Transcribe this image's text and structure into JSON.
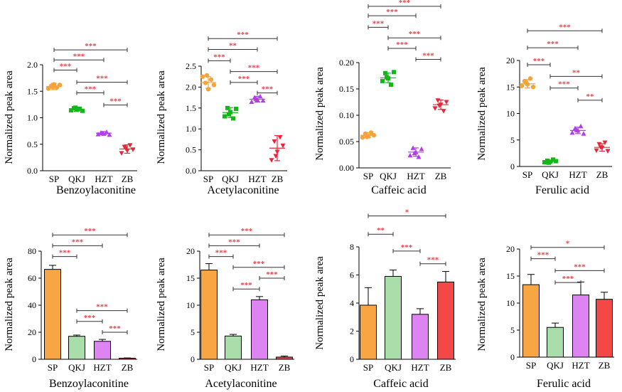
{
  "colors": {
    "SP": "#f5a33a",
    "QKJ": "#12b816",
    "HZT": "#b33dea",
    "ZB": "#e8263a",
    "bar_SP": "#f8a644",
    "bar_QKJ": "#a9ddaa",
    "bar_HZT": "#dd84f2",
    "bar_ZB": "#f24848",
    "sig": "#e8404a",
    "axis": "#000000"
  },
  "chart_data": [
    {
      "type": "scatter",
      "title": "Benzoylaconitine",
      "ylabel": "Normalized peak area",
      "categories": [
        "SP",
        "QKJ",
        "HZT",
        "ZB"
      ],
      "ylim": [
        0,
        2.0
      ],
      "yticks": [
        "0.0",
        "0.5",
        "1.0",
        "1.5",
        "2.0"
      ],
      "tickvals": [
        0,
        0.5,
        1.0,
        1.5,
        2.0
      ],
      "means": [
        1.59,
        1.16,
        0.71,
        0.41
      ],
      "sds": [
        0.06,
        0.04,
        0.03,
        0.08
      ],
      "points": [
        [
          1.55,
          1.6,
          1.63,
          1.57,
          1.62,
          1.58
        ],
        [
          1.14,
          1.18,
          1.15,
          1.17,
          1.13,
          1.19
        ],
        [
          0.69,
          0.72,
          0.7,
          0.73,
          0.68,
          0.71
        ],
        [
          0.33,
          0.45,
          0.38,
          0.48,
          0.4,
          0.42
        ]
      ],
      "sig": [
        {
          "from": 0,
          "to": 3,
          "y": 2.28,
          "label": "***"
        },
        {
          "from": 0,
          "to": 2,
          "y": 2.09,
          "label": "***"
        },
        {
          "from": 0,
          "to": 1,
          "y": 1.9,
          "label": "***"
        },
        {
          "from": 1,
          "to": 3,
          "y": 1.67,
          "label": "***"
        },
        {
          "from": 1,
          "to": 2,
          "y": 1.47,
          "label": "***"
        },
        {
          "from": 2,
          "to": 3,
          "y": 1.24,
          "label": "***"
        }
      ]
    },
    {
      "type": "scatter",
      "title": "Acetylaconitine",
      "ylabel": "Normalized peak area",
      "categories": [
        "SP",
        "QKJ",
        "HZT",
        "ZB"
      ],
      "ylim": [
        0,
        2.5
      ],
      "yticks": [
        "0.0",
        "0.5",
        "1.0",
        "1.5",
        "2.0",
        "2.5"
      ],
      "tickvals": [
        0,
        0.5,
        1.0,
        1.5,
        2.0,
        2.5
      ],
      "means": [
        2.11,
        1.39,
        1.71,
        0.54
      ],
      "sds": [
        0.14,
        0.12,
        0.07,
        0.3
      ],
      "points": [
        [
          2.25,
          2.1,
          1.95,
          2.18,
          2.05,
          2.28
        ],
        [
          1.3,
          1.5,
          1.4,
          1.25,
          1.48,
          1.35
        ],
        [
          1.65,
          1.75,
          1.7,
          1.78,
          1.68,
          1.72
        ],
        [
          0.25,
          0.7,
          0.45,
          0.8,
          0.6,
          0.35
        ]
      ],
      "sig": [
        {
          "from": 0,
          "to": 3,
          "y": 3.16,
          "label": "***"
        },
        {
          "from": 0,
          "to": 2,
          "y": 2.9,
          "label": "**"
        },
        {
          "from": 0,
          "to": 1,
          "y": 2.63,
          "label": "***"
        },
        {
          "from": 1,
          "to": 3,
          "y": 2.37,
          "label": "***"
        },
        {
          "from": 1,
          "to": 2,
          "y": 2.11,
          "label": "***"
        },
        {
          "from": 2,
          "to": 3,
          "y": 1.86,
          "label": "***"
        }
      ]
    },
    {
      "type": "scatter",
      "title": "Caffeic acid",
      "ylabel": "Normalized peak area",
      "categories": [
        "SP",
        "QKJ",
        "HZT",
        "ZB"
      ],
      "ylim": [
        0,
        0.2
      ],
      "yticks": [
        "0.00",
        "0.05",
        "0.10",
        "0.15",
        "0.20"
      ],
      "tickvals": [
        0,
        0.05,
        0.1,
        0.15,
        0.2
      ],
      "means": [
        0.062,
        0.171,
        0.03,
        0.12
      ],
      "sds": [
        0.005,
        0.009,
        0.008,
        0.009
      ],
      "points": [
        [
          0.058,
          0.065,
          0.06,
          0.067,
          0.062,
          0.059
        ],
        [
          0.165,
          0.18,
          0.17,
          0.158,
          0.182,
          0.172
        ],
        [
          0.024,
          0.038,
          0.03,
          0.021,
          0.036,
          0.028
        ],
        [
          0.113,
          0.128,
          0.12,
          0.108,
          0.125,
          0.118
        ]
      ],
      "sig": [
        {
          "from": 0,
          "to": 3,
          "y": 0.307,
          "label": "***"
        },
        {
          "from": 0,
          "to": 2,
          "y": 0.289,
          "label": "***"
        },
        {
          "from": 0,
          "to": 1,
          "y": 0.267,
          "label": "***"
        },
        {
          "from": 1,
          "to": 3,
          "y": 0.247,
          "label": "***"
        },
        {
          "from": 1,
          "to": 2,
          "y": 0.227,
          "label": "***"
        },
        {
          "from": 2,
          "to": 3,
          "y": 0.206,
          "label": "***"
        }
      ]
    },
    {
      "type": "scatter",
      "title": "Ferulic acid",
      "ylabel": "Normalized peak area",
      "categories": [
        "SP",
        "QKJ",
        "HZT",
        "ZB"
      ],
      "ylim": [
        0,
        20
      ],
      "yticks": [
        "0",
        "5",
        "10",
        "15",
        "20"
      ],
      "tickvals": [
        0,
        5,
        10,
        15,
        20
      ],
      "means": [
        15.6,
        1.0,
        6.8,
        3.6
      ],
      "sds": [
        0.8,
        0.2,
        0.6,
        0.7
      ],
      "points": [
        [
          15.2,
          16.1,
          15.5,
          16.6,
          15.0,
          15.8
        ],
        [
          0.8,
          1.1,
          0.9,
          1.3,
          1.0,
          0.7
        ],
        [
          6.4,
          7.2,
          6.8,
          7.6,
          6.2,
          6.9
        ],
        [
          3.0,
          4.2,
          3.5,
          4.5,
          2.9,
          3.6
        ]
      ],
      "sig": [
        {
          "from": 0,
          "to": 3,
          "y": 25.6,
          "label": "***"
        },
        {
          "from": 0,
          "to": 2,
          "y": 22.4,
          "label": "***"
        },
        {
          "from": 0,
          "to": 1,
          "y": 19.2,
          "label": "***"
        },
        {
          "from": 1,
          "to": 3,
          "y": 17.0,
          "label": "**"
        },
        {
          "from": 1,
          "to": 2,
          "y": 14.8,
          "label": "***"
        },
        {
          "from": 2,
          "to": 3,
          "y": 12.5,
          "label": "**"
        }
      ]
    },
    {
      "type": "bar",
      "title": "Benzoylaconitine",
      "ylabel": "Normalized peak area",
      "categories": [
        "SP",
        "QKJ",
        "HZT",
        "ZB"
      ],
      "ylim": [
        0,
        80
      ],
      "yticks": [
        "0",
        "20",
        "40",
        "60",
        "80"
      ],
      "tickvals": [
        0,
        20,
        40,
        60,
        80
      ],
      "values": [
        66.5,
        17.0,
        13.3,
        0.8
      ],
      "errors": [
        3.0,
        0.9,
        1.4,
        0.2
      ],
      "sig": [
        {
          "from": 0,
          "to": 3,
          "y": 92,
          "label": "***"
        },
        {
          "from": 0,
          "to": 2,
          "y": 84,
          "label": "***"
        },
        {
          "from": 0,
          "to": 1,
          "y": 76,
          "label": "***"
        },
        {
          "from": 1,
          "to": 3,
          "y": 36,
          "label": "***"
        },
        {
          "from": 1,
          "to": 2,
          "y": 28,
          "label": "***"
        },
        {
          "from": 2,
          "to": 3,
          "y": 20,
          "label": "***"
        }
      ]
    },
    {
      "type": "bar",
      "title": "Acetylaconitine",
      "ylabel": "Normalized peak area",
      "categories": [
        "SP",
        "QKJ",
        "HZT",
        "ZB"
      ],
      "ylim": [
        0,
        20
      ],
      "yticks": [
        "0",
        "5",
        "10",
        "15",
        "20"
      ],
      "tickvals": [
        0,
        5,
        10,
        15,
        20
      ],
      "values": [
        16.5,
        4.3,
        11.0,
        0.4
      ],
      "errors": [
        1.2,
        0.3,
        0.6,
        0.2
      ],
      "sig": [
        {
          "from": 0,
          "to": 3,
          "y": 23.0,
          "label": "***"
        },
        {
          "from": 0,
          "to": 2,
          "y": 21.0,
          "label": "***"
        },
        {
          "from": 0,
          "to": 1,
          "y": 19.0,
          "label": "***"
        },
        {
          "from": 1,
          "to": 3,
          "y": 17.0,
          "label": "***"
        },
        {
          "from": 2,
          "to": 3,
          "y": 15.0,
          "label": "***"
        },
        {
          "from": 1,
          "to": 2,
          "y": 13.0,
          "label": "***"
        }
      ]
    },
    {
      "type": "bar",
      "title": "Caffeic acid",
      "ylabel": "Normalized peak area",
      "categories": [
        "SP",
        "QKJ",
        "HZT",
        "ZB"
      ],
      "ylim": [
        0,
        8
      ],
      "yticks": [
        "0",
        "2",
        "4",
        "6",
        "8"
      ],
      "tickvals": [
        0,
        2,
        4,
        6,
        8
      ],
      "values": [
        3.85,
        5.9,
        3.2,
        5.5
      ],
      "errors": [
        1.25,
        0.45,
        0.4,
        0.75
      ],
      "sig": [
        {
          "from": 0,
          "to": 3,
          "y": 10.2,
          "label": "*"
        },
        {
          "from": 0,
          "to": 1,
          "y": 8.9,
          "label": "**"
        },
        {
          "from": 1,
          "to": 2,
          "y": 7.7,
          "label": "***"
        },
        {
          "from": 2,
          "to": 3,
          "y": 6.8,
          "label": "***"
        }
      ]
    },
    {
      "type": "bar",
      "title": "Ferulic acid",
      "ylabel": "Normalized peak area",
      "categories": [
        "SP",
        "QKJ",
        "HZT",
        "ZB"
      ],
      "ylim": [
        0,
        20
      ],
      "yticks": [
        "0",
        "5",
        "10",
        "15",
        "20"
      ],
      "tickvals": [
        0,
        5,
        10,
        15,
        20
      ],
      "values": [
        13.4,
        5.5,
        11.5,
        10.7
      ],
      "errors": [
        1.9,
        0.8,
        2.4,
        1.3
      ],
      "sig": [
        {
          "from": 0,
          "to": 3,
          "y": 20.3,
          "label": "*"
        },
        {
          "from": 0,
          "to": 1,
          "y": 18.2,
          "label": "***"
        },
        {
          "from": 1,
          "to": 3,
          "y": 16.0,
          "label": "***"
        },
        {
          "from": 1,
          "to": 2,
          "y": 13.8,
          "label": "***"
        }
      ]
    }
  ]
}
